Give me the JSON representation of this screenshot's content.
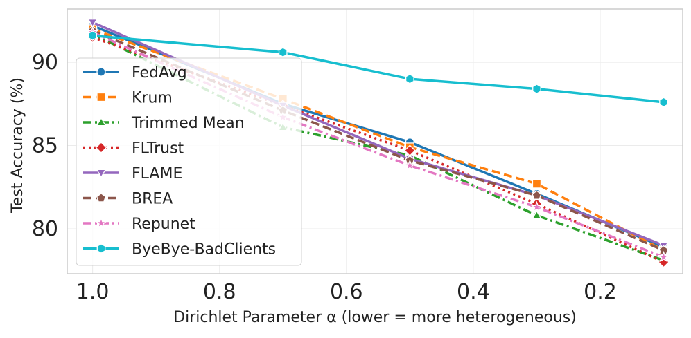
{
  "chart_data": {
    "type": "line",
    "title": "",
    "xlabel": "Dirichlet Parameter α (lower = more heterogeneous)",
    "ylabel": "Test Accuracy (%)",
    "x": [
      1.0,
      0.7,
      0.5,
      0.3,
      0.1
    ],
    "xlim": [
      1.04,
      0.07
    ],
    "ylim": [
      77.3,
      93.2
    ],
    "x_ticks": [
      1.0,
      0.8,
      0.6,
      0.4,
      0.2
    ],
    "x_tick_labels": [
      "1.0",
      "0.8",
      "0.6",
      "0.4",
      "0.2"
    ],
    "y_ticks": [
      80,
      85,
      90
    ],
    "y_tick_labels": [
      "80",
      "85",
      "90"
    ],
    "grid": true,
    "legend_position": "left",
    "series": [
      {
        "name": "FedAvg",
        "values": [
          92.2,
          87.5,
          85.2,
          82.1,
          78.9
        ],
        "color": "#1f77b4",
        "dash": "solid",
        "marker": "circle"
      },
      {
        "name": "Krum",
        "values": [
          92.0,
          87.8,
          84.9,
          82.7,
          78.7
        ],
        "color": "#ff7f0e",
        "dash": "dashed",
        "marker": "square"
      },
      {
        "name": "Trimmed Mean",
        "values": [
          91.7,
          86.1,
          84.4,
          80.8,
          78.1
        ],
        "color": "#2ca02c",
        "dash": "dashdot",
        "marker": "triangle-up"
      },
      {
        "name": "FLTrust",
        "values": [
          91.5,
          87.4,
          84.7,
          81.5,
          78.0
        ],
        "color": "#d62728",
        "dash": "dotted",
        "marker": "diamond"
      },
      {
        "name": "FLAME",
        "values": [
          92.4,
          87.4,
          84.2,
          82.0,
          79.0
        ],
        "color": "#9467bd",
        "dash": "solid",
        "marker": "triangle-down"
      },
      {
        "name": "BREA",
        "values": [
          91.9,
          87.1,
          84.1,
          82.0,
          78.7
        ],
        "color": "#8c564b",
        "dash": "dashed",
        "marker": "pentagon"
      },
      {
        "name": "Repunet",
        "values": [
          91.8,
          86.7,
          83.8,
          81.3,
          78.3
        ],
        "color": "#e377c2",
        "dash": "dashdot",
        "marker": "star"
      },
      {
        "name": "ByeBye-BadClients",
        "values": [
          91.6,
          90.6,
          89.0,
          88.4,
          87.6
        ],
        "color": "#17becf",
        "dash": "solid",
        "marker": "hexagon"
      }
    ]
  }
}
